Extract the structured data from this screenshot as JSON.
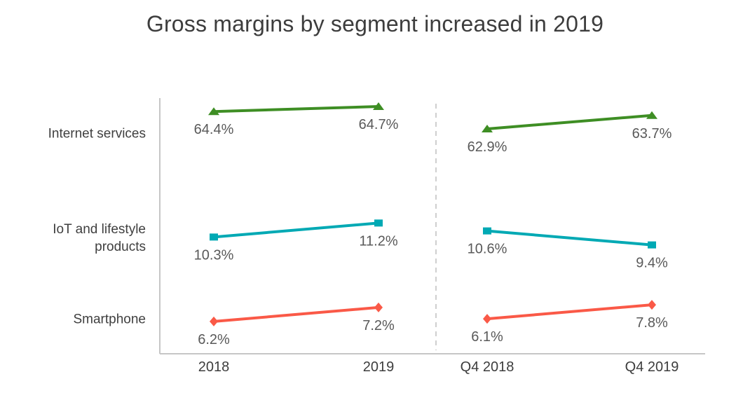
{
  "colors": {
    "background": "#ffffff",
    "title_text": "#3d3d3d",
    "segment_label_text": "#3f3f3f",
    "value_label_text": "#595959",
    "x_label_text": "#3d3d3d",
    "axis_line": "#c6c6c6",
    "panel_divider": "#cfcfcf"
  },
  "chart_data": {
    "type": "line",
    "title": "Gross margins by segment increased in 2019",
    "unit": "%",
    "grid": false,
    "legend": "none",
    "panels": [
      {
        "categories": [
          "2018",
          "2019"
        ]
      },
      {
        "categories": [
          "Q4 2018",
          "Q4 2019"
        ]
      }
    ],
    "series": [
      {
        "name": "Internet services",
        "marker": "triangle",
        "color": "#3e8e24",
        "values": [
          [
            64.4,
            64.7
          ],
          [
            62.9,
            63.7
          ]
        ],
        "value_labels": [
          [
            "64.4%",
            "64.7%"
          ],
          [
            "62.9%",
            "63.7%"
          ]
        ]
      },
      {
        "name": "IoT and lifestyle products",
        "marker": "square",
        "color": "#00a9b4",
        "values": [
          [
            10.3,
            11.2
          ],
          [
            10.6,
            9.4
          ]
        ],
        "value_labels": [
          [
            "10.3%",
            "11.2%"
          ],
          [
            "10.6%",
            "9.4%"
          ]
        ]
      },
      {
        "name": "Smartphone",
        "marker": "diamond",
        "color": "#fa5947",
        "values": [
          [
            6.2,
            7.2
          ],
          [
            6.1,
            7.8
          ]
        ],
        "value_labels": [
          [
            "6.2%",
            "7.2%"
          ],
          [
            "6.1%",
            "7.8%"
          ]
        ]
      }
    ]
  }
}
